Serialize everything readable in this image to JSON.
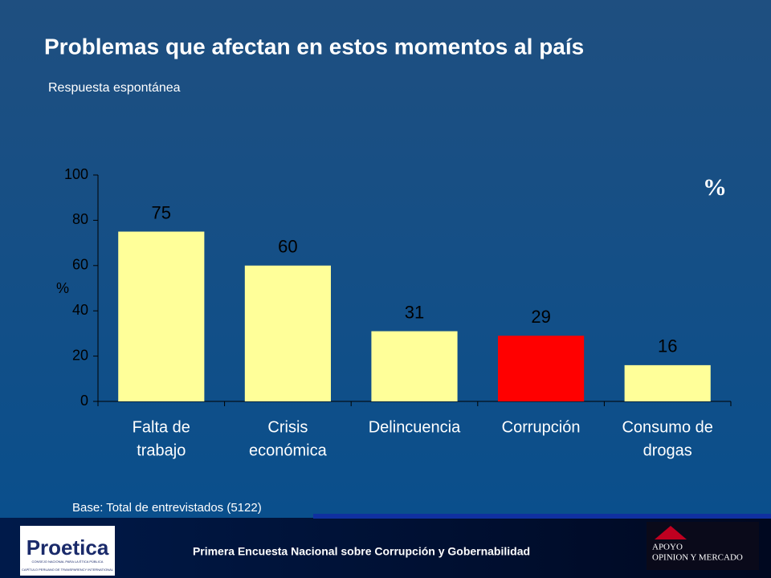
{
  "chart_data": {
    "type": "bar",
    "title": "Problemas que afectan en estos momentos al país",
    "subtitle": "Respuesta espontánea",
    "y_label": "%",
    "unit_mark": "%",
    "categories": [
      [
        "Falta de",
        "trabajo"
      ],
      [
        "Crisis",
        "económica"
      ],
      [
        "Delincuencia"
      ],
      [
        "Corrupción"
      ],
      [
        "Consumo de",
        "drogas"
      ]
    ],
    "values": [
      75,
      60,
      31,
      29,
      16
    ],
    "colors": [
      "#ffff99",
      "#ffff99",
      "#ffff99",
      "#ff0000",
      "#ffff99"
    ],
    "ylim": [
      0,
      100
    ],
    "yticks": [
      0,
      20,
      40,
      60,
      80,
      100
    ],
    "note": "Base: Total de entrevistados (5122)"
  },
  "footer": {
    "text": "Primera Encuesta Nacional sobre Corrupción y Gobernabilidad",
    "logo_left": {
      "name": "Proetica",
      "line1": "CONSEJO NACIONAL PARA LA ÉTICA PÚBLICA",
      "line2": "CAPÍTULO PERUANO DE TRANSPARENCY INTERNATIONAL"
    },
    "logo_right": {
      "line1": "APOYO",
      "line2": "OPINION Y MERCADO"
    }
  }
}
